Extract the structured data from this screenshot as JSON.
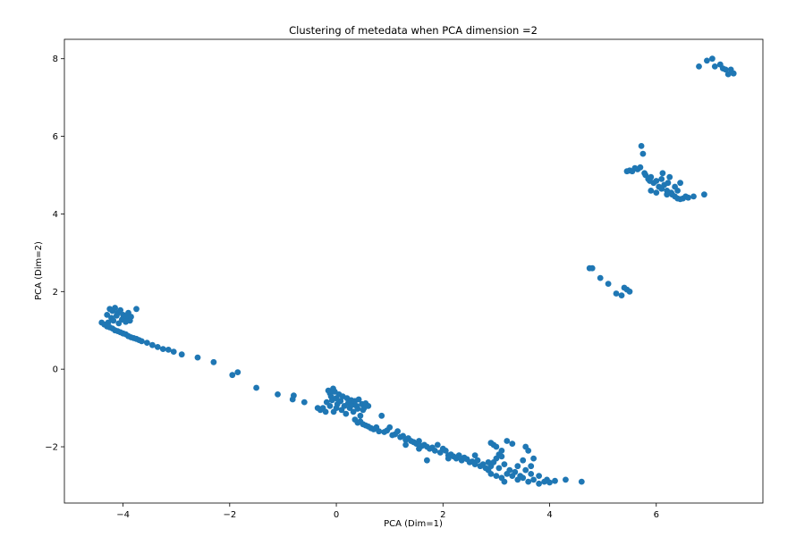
{
  "chart_data": {
    "type": "scatter",
    "title": "Clustering of metedata when PCA dimension =2",
    "xlabel": "PCA (Dim=1)",
    "ylabel": "PCA (Dim=2)",
    "xlim": [
      -5.1,
      8.0
    ],
    "ylim": [
      -3.45,
      8.5
    ],
    "xticks": [
      -4,
      -2,
      0,
      2,
      4,
      6
    ],
    "xtick_labels": [
      "−4",
      "−2",
      "0",
      "2",
      "4",
      "6"
    ],
    "yticks": [
      -2,
      0,
      2,
      4,
      6,
      8
    ],
    "ytick_labels": [
      "−2",
      "0",
      "2",
      "4",
      "6",
      "8"
    ],
    "grid": false,
    "legend": false,
    "marker_color": "#1f77b4",
    "points": [
      [
        -4.25,
        1.55
      ],
      [
        -4.2,
        1.5
      ],
      [
        -4.15,
        1.58
      ],
      [
        -4.1,
        1.45
      ],
      [
        -4.05,
        1.52
      ],
      [
        -4.0,
        1.4
      ],
      [
        -3.95,
        1.35
      ],
      [
        -3.9,
        1.3
      ],
      [
        -4.3,
        1.4
      ],
      [
        -4.22,
        1.32
      ],
      [
        -4.12,
        1.38
      ],
      [
        -4.02,
        1.28
      ],
      [
        -3.95,
        1.22
      ],
      [
        -4.18,
        1.25
      ],
      [
        -4.08,
        1.18
      ],
      [
        -4.28,
        1.2
      ],
      [
        -3.9,
        1.45
      ],
      [
        -3.85,
        1.35
      ],
      [
        -3.87,
        1.25
      ],
      [
        -3.75,
        1.55
      ],
      [
        -4.4,
        1.2
      ],
      [
        -4.35,
        1.15
      ],
      [
        -4.3,
        1.1
      ],
      [
        -4.25,
        1.08
      ],
      [
        -4.2,
        1.05
      ],
      [
        -4.15,
        1.0
      ],
      [
        -4.1,
        0.98
      ],
      [
        -4.05,
        0.95
      ],
      [
        -4.0,
        0.92
      ],
      [
        -3.95,
        0.9
      ],
      [
        -3.9,
        0.85
      ],
      [
        -3.85,
        0.82
      ],
      [
        -3.8,
        0.8
      ],
      [
        -3.75,
        0.78
      ],
      [
        -3.7,
        0.75
      ],
      [
        -3.65,
        0.72
      ],
      [
        -3.55,
        0.68
      ],
      [
        -3.45,
        0.62
      ],
      [
        -3.35,
        0.57
      ],
      [
        -3.25,
        0.52
      ],
      [
        -3.15,
        0.5
      ],
      [
        -3.05,
        0.45
      ],
      [
        -2.9,
        0.38
      ],
      [
        -2.6,
        0.3
      ],
      [
        -2.3,
        0.18
      ],
      [
        -1.95,
        -0.15
      ],
      [
        -1.85,
        -0.08
      ],
      [
        -1.5,
        -0.48
      ],
      [
        -1.1,
        -0.65
      ],
      [
        -0.8,
        -0.68
      ],
      [
        -0.82,
        -0.78
      ],
      [
        -0.6,
        -0.85
      ],
      [
        -0.35,
        -1.0
      ],
      [
        -0.3,
        -1.05
      ],
      [
        -0.25,
        -1.0
      ],
      [
        -0.2,
        -1.1
      ],
      [
        -0.15,
        -0.55
      ],
      [
        -0.12,
        -0.62
      ],
      [
        -0.1,
        -0.7
      ],
      [
        -0.08,
        -0.8
      ],
      [
        -0.06,
        -0.5
      ],
      [
        -0.03,
        -0.58
      ],
      [
        0.0,
        -0.75
      ],
      [
        0.02,
        -0.9
      ],
      [
        0.05,
        -0.65
      ],
      [
        0.08,
        -0.82
      ],
      [
        0.1,
        -1.05
      ],
      [
        0.12,
        -0.7
      ],
      [
        0.15,
        -0.95
      ],
      [
        0.18,
        -1.15
      ],
      [
        0.2,
        -0.75
      ],
      [
        0.22,
        -0.88
      ],
      [
        0.25,
        -1.0
      ],
      [
        0.28,
        -0.8
      ],
      [
        0.3,
        -0.92
      ],
      [
        0.32,
        -1.1
      ],
      [
        0.35,
        -0.82
      ],
      [
        0.38,
        -0.95
      ],
      [
        0.4,
        -1.02
      ],
      [
        0.42,
        -0.78
      ],
      [
        0.45,
        -1.2
      ],
      [
        0.48,
        -0.9
      ],
      [
        0.5,
        -1.05
      ],
      [
        0.52,
        -1.0
      ],
      [
        0.55,
        -0.88
      ],
      [
        0.6,
        -0.95
      ],
      [
        -0.05,
        -1.1
      ],
      [
        -0.12,
        -0.95
      ],
      [
        -0.18,
        -0.85
      ],
      [
        0.0,
        -1.0
      ],
      [
        0.35,
        -1.3
      ],
      [
        0.4,
        -1.38
      ],
      [
        0.45,
        -1.35
      ],
      [
        0.5,
        -1.42
      ],
      [
        0.55,
        -1.45
      ],
      [
        0.6,
        -1.48
      ],
      [
        0.65,
        -1.52
      ],
      [
        0.7,
        -1.55
      ],
      [
        0.75,
        -1.5
      ],
      [
        0.8,
        -1.6
      ],
      [
        0.85,
        -1.2
      ],
      [
        0.9,
        -1.62
      ],
      [
        0.95,
        -1.58
      ],
      [
        1.0,
        -1.5
      ],
      [
        1.05,
        -1.7
      ],
      [
        1.1,
        -1.68
      ],
      [
        1.15,
        -1.6
      ],
      [
        1.2,
        -1.75
      ],
      [
        1.25,
        -1.72
      ],
      [
        1.3,
        -1.82
      ],
      [
        1.35,
        -1.78
      ],
      [
        1.4,
        -1.85
      ],
      [
        1.45,
        -1.88
      ],
      [
        1.5,
        -1.92
      ],
      [
        1.55,
        -1.85
      ],
      [
        1.6,
        -1.98
      ],
      [
        1.65,
        -1.95
      ],
      [
        1.7,
        -2.0
      ],
      [
        1.75,
        -2.05
      ],
      [
        1.8,
        -2.02
      ],
      [
        1.85,
        -2.1
      ],
      [
        1.9,
        -1.95
      ],
      [
        1.95,
        -2.15
      ],
      [
        2.0,
        -2.05
      ],
      [
        2.05,
        -2.1
      ],
      [
        2.1,
        -2.22
      ],
      [
        2.15,
        -2.2
      ],
      [
        2.2,
        -2.25
      ],
      [
        2.25,
        -2.3
      ],
      [
        2.3,
        -2.22
      ],
      [
        2.35,
        -2.35
      ],
      [
        2.4,
        -2.28
      ],
      [
        2.45,
        -2.32
      ],
      [
        2.5,
        -2.4
      ],
      [
        2.55,
        -2.38
      ],
      [
        2.6,
        -2.45
      ],
      [
        2.65,
        -2.35
      ],
      [
        2.7,
        -2.5
      ],
      [
        2.1,
        -2.3
      ],
      [
        1.55,
        -2.05
      ],
      [
        1.7,
        -2.35
      ],
      [
        1.3,
        -1.95
      ],
      [
        2.6,
        -2.22
      ],
      [
        2.75,
        -2.45
      ],
      [
        2.8,
        -2.55
      ],
      [
        2.85,
        -2.6
      ],
      [
        2.9,
        -2.5
      ],
      [
        2.95,
        -2.4
      ],
      [
        3.0,
        -2.3
      ],
      [
        3.05,
        -2.2
      ],
      [
        3.1,
        -2.1
      ],
      [
        3.0,
        -2.0
      ],
      [
        2.95,
        -1.95
      ],
      [
        2.9,
        -1.9
      ],
      [
        3.1,
        -2.25
      ],
      [
        3.15,
        -2.45
      ],
      [
        2.85,
        -2.4
      ],
      [
        3.05,
        -2.55
      ],
      [
        2.9,
        -2.7
      ],
      [
        3.0,
        -2.75
      ],
      [
        3.1,
        -2.8
      ],
      [
        3.2,
        -2.7
      ],
      [
        3.3,
        -2.75
      ],
      [
        3.4,
        -2.85
      ],
      [
        3.5,
        -2.8
      ],
      [
        3.6,
        -2.9
      ],
      [
        3.7,
        -2.85
      ],
      [
        3.8,
        -2.95
      ],
      [
        3.9,
        -2.9
      ],
      [
        4.0,
        -2.92
      ],
      [
        4.1,
        -2.88
      ],
      [
        3.25,
        -2.6
      ],
      [
        3.35,
        -2.65
      ],
      [
        3.45,
        -2.75
      ],
      [
        3.55,
        -2.6
      ],
      [
        3.65,
        -2.5
      ],
      [
        3.7,
        -2.3
      ],
      [
        3.6,
        -2.1
      ],
      [
        3.55,
        -2.0
      ],
      [
        3.3,
        -1.92
      ],
      [
        3.2,
        -1.85
      ],
      [
        3.4,
        -2.5
      ],
      [
        3.5,
        -2.35
      ],
      [
        3.65,
        -2.7
      ],
      [
        3.8,
        -2.75
      ],
      [
        3.15,
        -2.9
      ],
      [
        3.95,
        -2.85
      ],
      [
        4.3,
        -2.85
      ],
      [
        4.6,
        -2.9
      ],
      [
        4.75,
        2.6
      ],
      [
        4.8,
        2.6
      ],
      [
        4.95,
        2.35
      ],
      [
        5.1,
        2.2
      ],
      [
        5.25,
        1.95
      ],
      [
        5.35,
        1.9
      ],
      [
        5.45,
        2.05
      ],
      [
        5.4,
        2.1
      ],
      [
        5.5,
        2.0
      ],
      [
        5.45,
        5.1
      ],
      [
        5.5,
        5.12
      ],
      [
        5.55,
        5.1
      ],
      [
        5.6,
        5.18
      ],
      [
        5.65,
        5.15
      ],
      [
        5.7,
        5.2
      ],
      [
        5.72,
        5.75
      ],
      [
        5.75,
        5.55
      ],
      [
        5.78,
        5.05
      ],
      [
        5.8,
        5.0
      ],
      [
        5.85,
        4.9
      ],
      [
        5.88,
        4.85
      ],
      [
        5.9,
        4.95
      ],
      [
        5.95,
        4.8
      ],
      [
        6.0,
        4.85
      ],
      [
        6.05,
        4.7
      ],
      [
        6.1,
        4.9
      ],
      [
        6.12,
        5.05
      ],
      [
        6.15,
        4.75
      ],
      [
        6.2,
        4.6
      ],
      [
        6.25,
        4.95
      ],
      [
        6.28,
        4.55
      ],
      [
        6.3,
        4.5
      ],
      [
        6.35,
        4.45
      ],
      [
        6.4,
        4.4
      ],
      [
        6.45,
        4.38
      ],
      [
        6.5,
        4.4
      ],
      [
        6.55,
        4.45
      ],
      [
        6.6,
        4.42
      ],
      [
        6.7,
        4.45
      ],
      [
        6.9,
        4.5
      ],
      [
        5.9,
        4.6
      ],
      [
        6.0,
        4.55
      ],
      [
        6.2,
        4.5
      ],
      [
        6.22,
        4.8
      ],
      [
        6.35,
        4.7
      ],
      [
        6.45,
        4.8
      ],
      [
        6.4,
        4.6
      ],
      [
        6.1,
        4.65
      ],
      [
        6.8,
        7.8
      ],
      [
        6.95,
        7.95
      ],
      [
        7.05,
        8.0
      ],
      [
        7.1,
        7.8
      ],
      [
        7.2,
        7.85
      ],
      [
        7.25,
        7.75
      ],
      [
        7.3,
        7.72
      ],
      [
        7.35,
        7.6
      ],
      [
        7.4,
        7.72
      ],
      [
        7.45,
        7.62
      ]
    ]
  }
}
